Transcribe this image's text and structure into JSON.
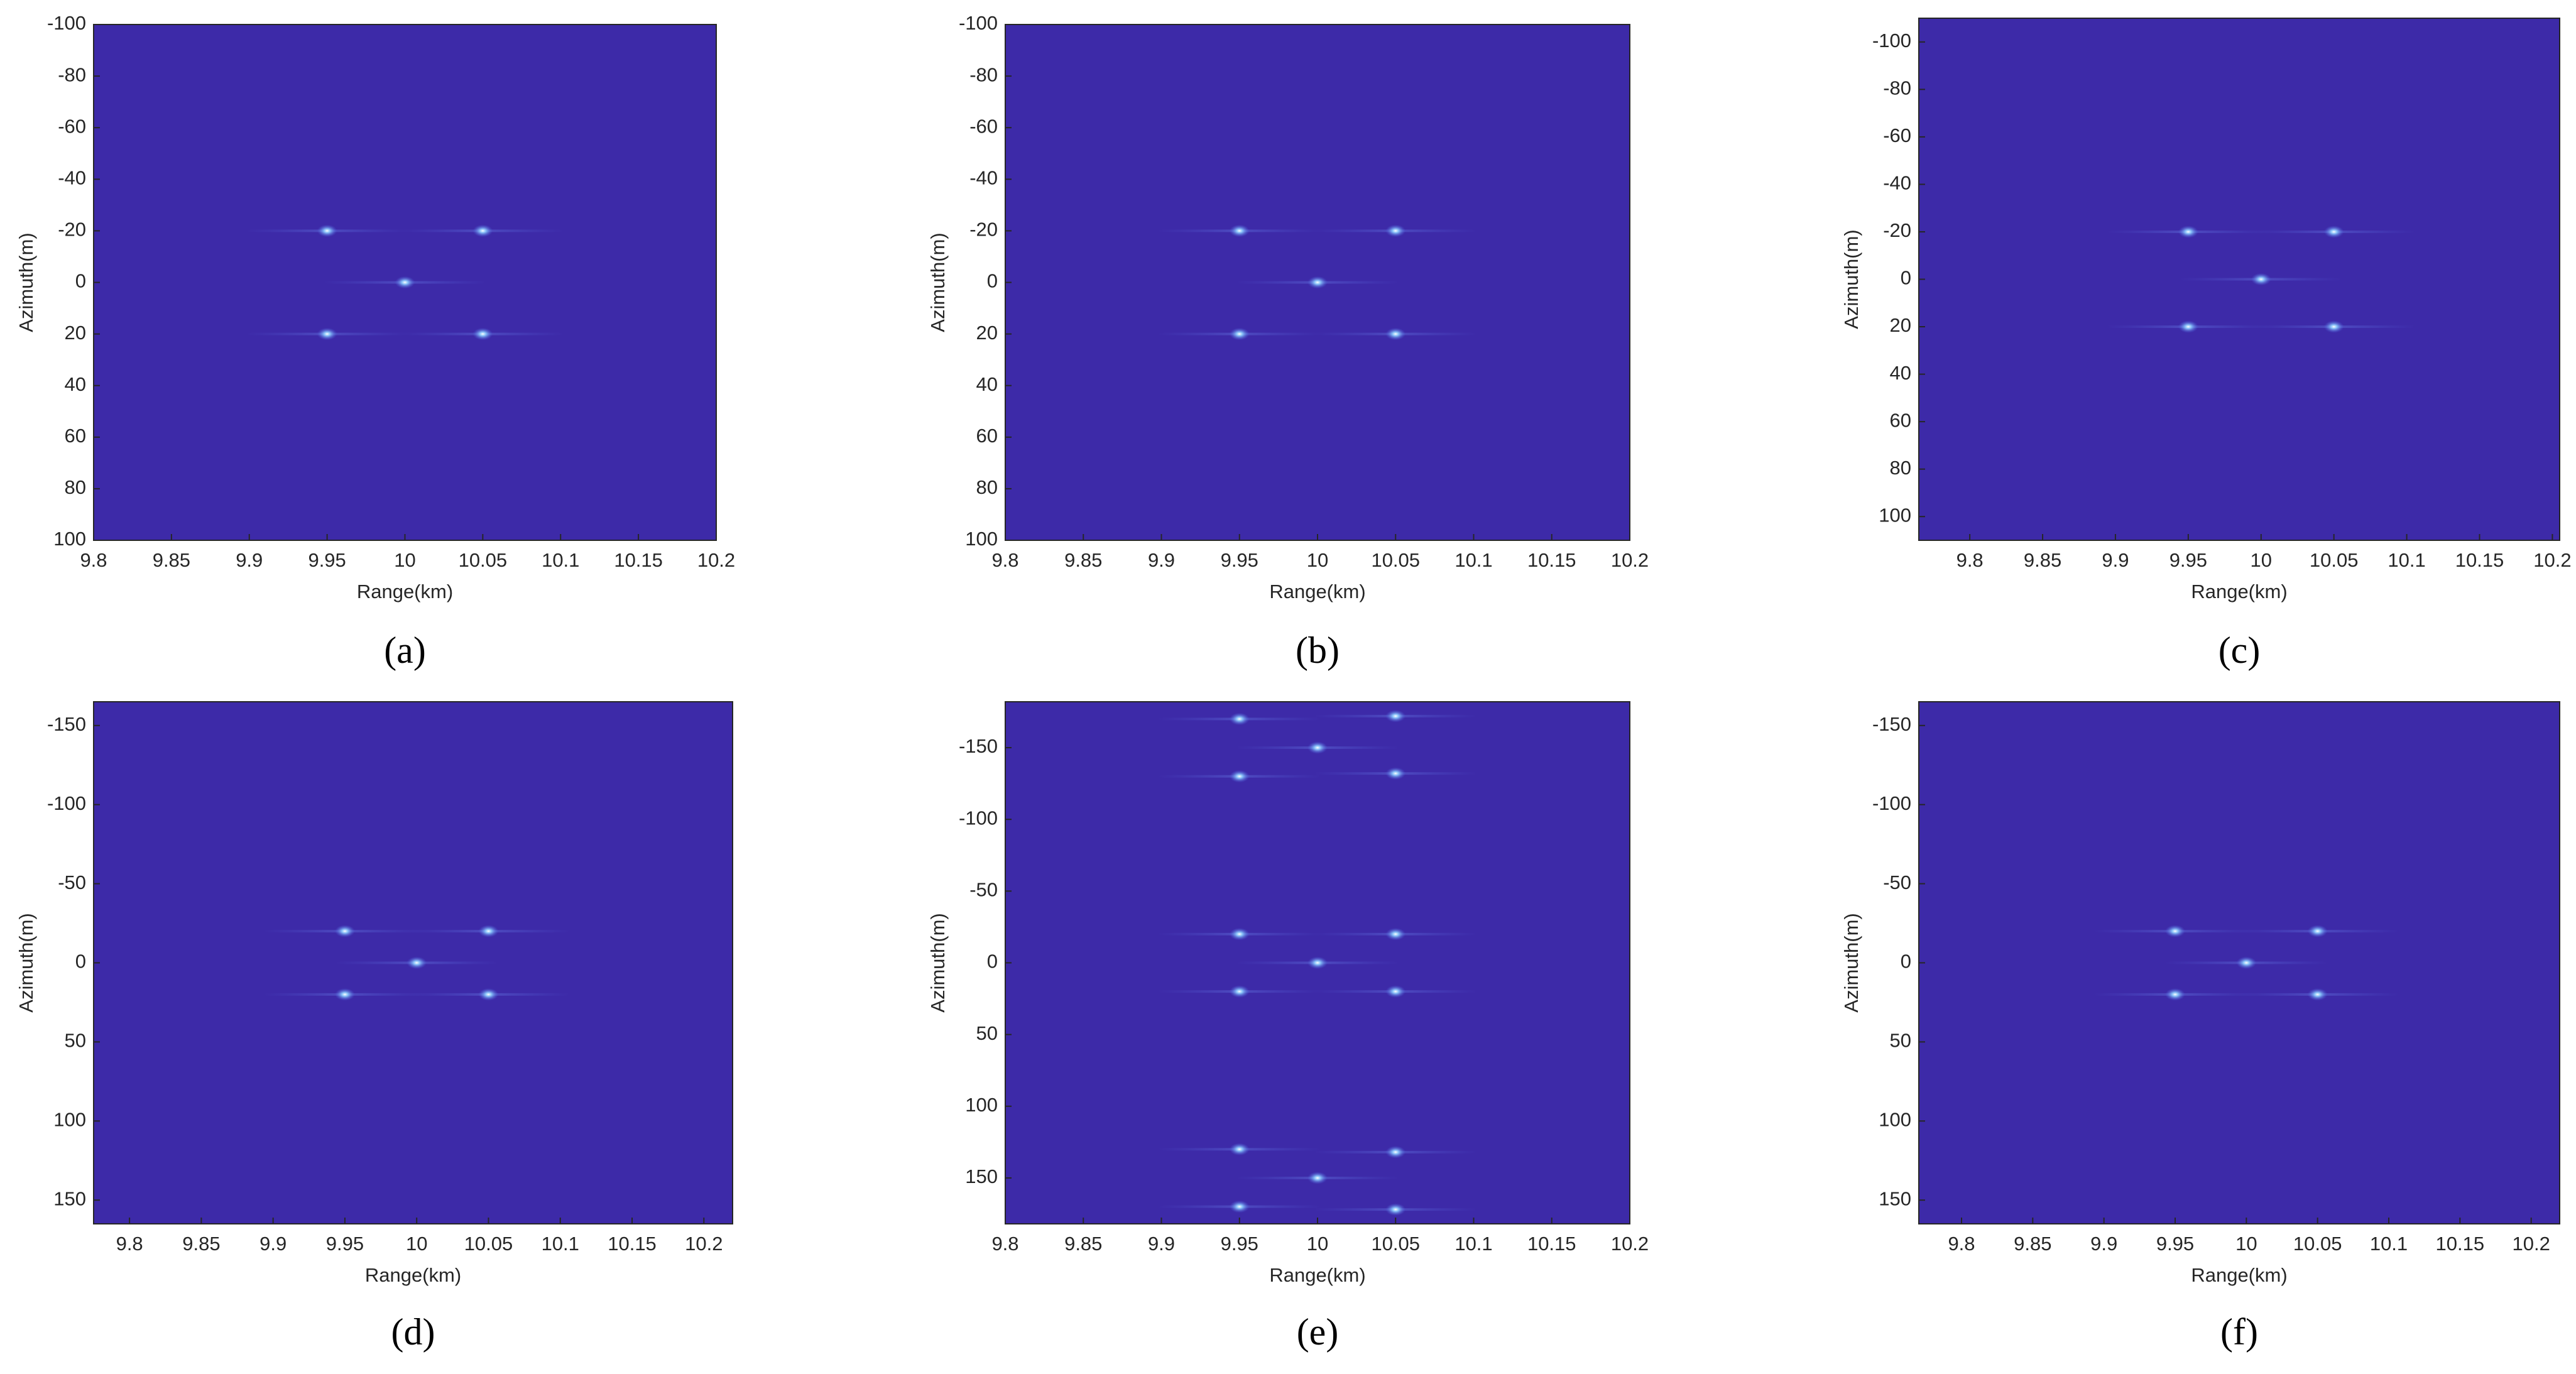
{
  "chart_data": [
    {
      "type": "scatter",
      "caption": "(a)",
      "xlabel": "Range(km)",
      "ylabel": "Azimuth(m)",
      "background": "#3d2aa8",
      "color": "#8fd0ff",
      "y_inverted": true,
      "xlim": [
        9.8,
        10.2
      ],
      "ylim": [
        -100,
        100
      ],
      "xticks": [
        9.8,
        9.85,
        9.9,
        9.95,
        10,
        10.05,
        10.1,
        10.15,
        10.2
      ],
      "yticks": [
        -100,
        -80,
        -60,
        -40,
        -20,
        0,
        20,
        40,
        60,
        80,
        100
      ],
      "x": [
        9.95,
        10.05,
        10,
        9.95,
        10.05
      ],
      "values": [
        -20,
        -20,
        0,
        20,
        20
      ]
    },
    {
      "type": "scatter",
      "caption": "(b)",
      "xlabel": "Range(km)",
      "ylabel": "Azimuth(m)",
      "background": "#3d2aa8",
      "color": "#8fd0ff",
      "y_inverted": true,
      "xlim": [
        9.8,
        10.2
      ],
      "ylim": [
        -100,
        100
      ],
      "xticks": [
        9.8,
        9.85,
        9.9,
        9.95,
        10,
        10.05,
        10.1,
        10.15,
        10.2
      ],
      "yticks": [
        -100,
        -80,
        -60,
        -40,
        -20,
        0,
        20,
        40,
        60,
        80,
        100
      ],
      "x": [
        9.95,
        10.05,
        10,
        9.95,
        10.05
      ],
      "values": [
        -20,
        -20,
        0,
        20,
        20
      ]
    },
    {
      "type": "scatter",
      "caption": "(c)",
      "xlabel": "Range(km)",
      "ylabel": "Azimuth(m)",
      "background": "#3d2aa8",
      "color": "#8fd0ff",
      "y_inverted": true,
      "xlim": [
        9.765,
        10.205
      ],
      "ylim": [
        -110,
        110
      ],
      "xticks": [
        9.8,
        9.85,
        9.9,
        9.95,
        10,
        10.05,
        10.1,
        10.15,
        10.2
      ],
      "yticks": [
        -100,
        -80,
        -60,
        -40,
        -20,
        0,
        20,
        40,
        60,
        80,
        100
      ],
      "x": [
        9.95,
        10.05,
        10,
        9.95,
        10.05
      ],
      "values": [
        -20,
        -20,
        0,
        20,
        20
      ]
    },
    {
      "type": "scatter",
      "caption": "(d)",
      "xlabel": "Range(km)",
      "ylabel": "Azimuth(m)",
      "background": "#3d2aa8",
      "color": "#8fd0ff",
      "y_inverted": true,
      "xlim": [
        9.775,
        10.22
      ],
      "ylim": [
        -165,
        165
      ],
      "xticks": [
        9.8,
        9.85,
        9.9,
        9.95,
        10,
        10.05,
        10.1,
        10.15,
        10.2
      ],
      "yticks": [
        -150,
        -100,
        -50,
        0,
        50,
        100,
        150
      ],
      "x": [
        9.95,
        10.05,
        10,
        9.95,
        10.05
      ],
      "values": [
        -20,
        -20,
        0,
        20,
        20
      ]
    },
    {
      "type": "scatter",
      "caption": "(e)",
      "xlabel": "Range(km)",
      "ylabel": "Azimuth(m)",
      "background": "#3d2aa8",
      "color": "#8fd0ff",
      "y_inverted": true,
      "xlim": [
        9.8,
        10.2
      ],
      "ylim": [
        -182,
        182
      ],
      "xticks": [
        9.8,
        9.85,
        9.9,
        9.95,
        10,
        10.05,
        10.1,
        10.15,
        10.2
      ],
      "yticks": [
        -150,
        -100,
        -50,
        0,
        50,
        100,
        150
      ],
      "x": [
        9.95,
        10.05,
        10,
        9.95,
        10.05,
        9.95,
        10.05,
        10,
        9.95,
        10.05,
        9.95,
        10.05,
        10,
        9.95,
        10.05
      ],
      "values": [
        -170,
        -172,
        -150,
        -130,
        -132,
        -20,
        -20,
        0,
        20,
        20,
        130,
        132,
        150,
        170,
        172
      ]
    },
    {
      "type": "scatter",
      "caption": "(f)",
      "xlabel": "Range(km)",
      "ylabel": "Azimuth(m)",
      "background": "#3d2aa8",
      "color": "#8fd0ff",
      "y_inverted": true,
      "xlim": [
        9.77,
        10.22
      ],
      "ylim": [
        -165,
        165
      ],
      "xticks": [
        9.8,
        9.85,
        9.9,
        9.95,
        10,
        10.05,
        10.1,
        10.15,
        10.2
      ],
      "yticks": [
        -150,
        -100,
        -50,
        0,
        50,
        100,
        150
      ],
      "x": [
        9.95,
        10.05,
        10,
        9.95,
        10.05
      ],
      "values": [
        -20,
        -20,
        0,
        20,
        20
      ]
    }
  ]
}
